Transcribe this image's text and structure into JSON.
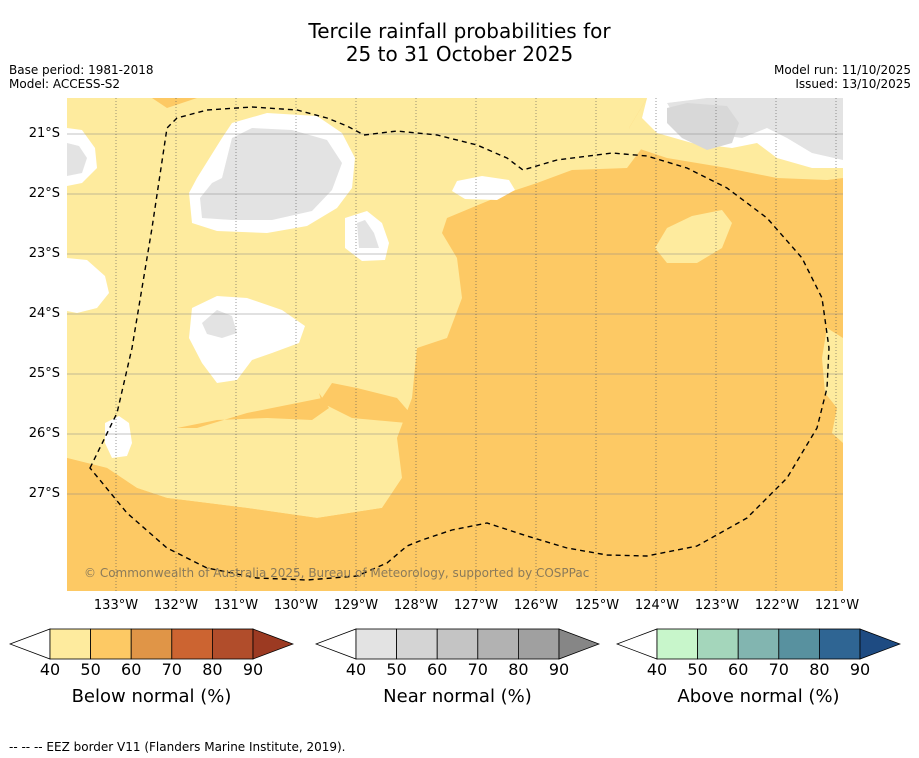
{
  "title_line1": "Tercile rainfall probabilities for",
  "title_line2": "25 to 31 October 2025",
  "meta_left": [
    "Base period: 1981-2018",
    "Model: ACCESS-S2"
  ],
  "meta_right": [
    "Model run: 11/10/2025",
    "Issued: 13/10/2025"
  ],
  "copyright": "© Commonwealth of Australia 2025, Bureau of Meteorology, supported by COSPPac",
  "lat_labels": [
    "21°S",
    "22°S",
    "23°S",
    "24°S",
    "25°S",
    "26°S",
    "27°S"
  ],
  "lon_labels": [
    "133°W",
    "132°W",
    "131°W",
    "130°W",
    "129°W",
    "128°W",
    "127°W",
    "126°W",
    "125°W",
    "124°W",
    "123°W",
    "122°W",
    "121°W"
  ],
  "colorbars": [
    {
      "title": "Below normal (%)",
      "ticks": [
        "40",
        "50",
        "60",
        "70",
        "80",
        "90"
      ],
      "colors": [
        "#ffffff",
        "#feeb9e",
        "#fdc964",
        "#e09547",
        "#cc6431",
        "#b14d2b",
        "#9c3a22"
      ]
    },
    {
      "title": "Near normal (%)",
      "ticks": [
        "40",
        "50",
        "60",
        "70",
        "80",
        "90"
      ],
      "colors": [
        "#ffffff",
        "#e3e3e3",
        "#d4d4d4",
        "#c4c4c4",
        "#b2b2b2",
        "#a0a0a0",
        "#868686"
      ]
    },
    {
      "title": "Above normal (%)",
      "ticks": [
        "40",
        "50",
        "60",
        "70",
        "80",
        "90"
      ],
      "colors": [
        "#ffffff",
        "#c8f6cb",
        "#a4d6bb",
        "#82b5b0",
        "#58919f",
        "#2f6593",
        "#1e4b82"
      ]
    }
  ],
  "footer": "-- -- -- EEZ border V11 (Flanders Marine Institute, 2019)."
}
